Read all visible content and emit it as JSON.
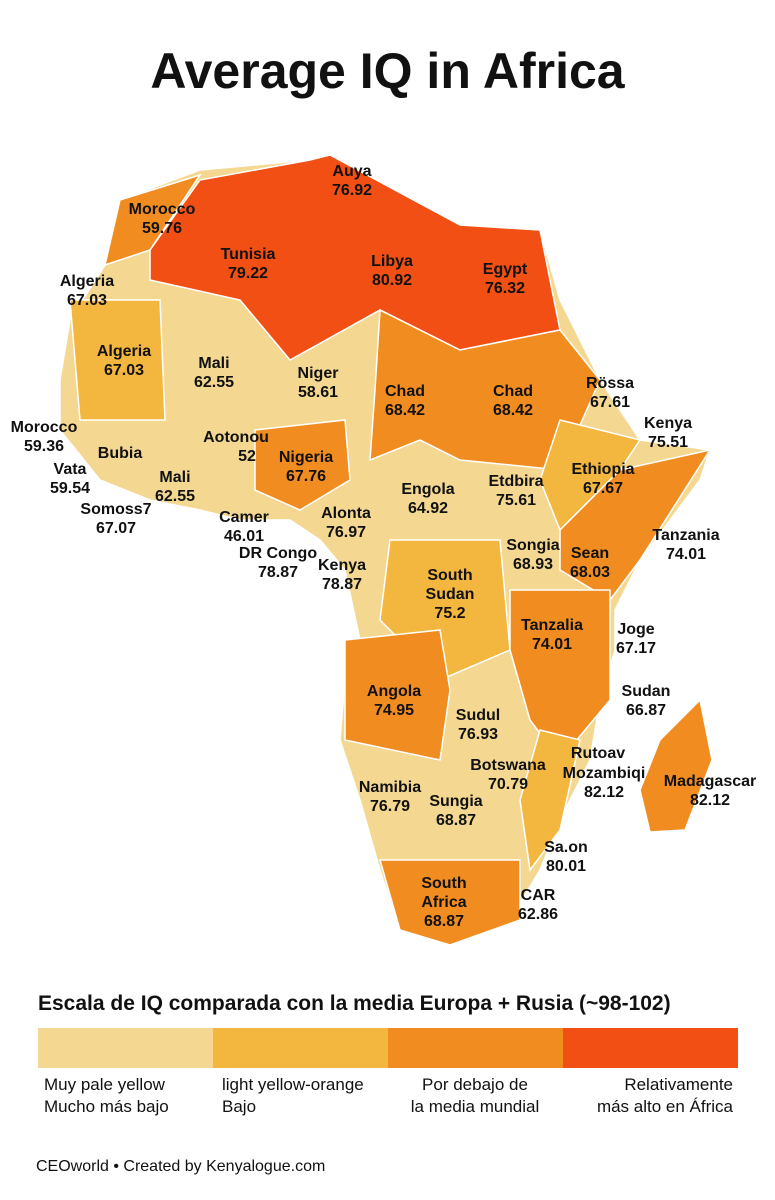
{
  "title": "Average IQ in Africa",
  "labels": [
    {
      "name": "Auya",
      "value": 76.92
    },
    {
      "name": "Morocco",
      "value": 59.76
    },
    {
      "name": "Tunisia",
      "value": 79.22
    },
    {
      "name": "Libya",
      "value": 80.92
    },
    {
      "name": "Egypt",
      "value": 76.32
    },
    {
      "name": "Algeria",
      "value": 67.03
    },
    {
      "name": "Algeria",
      "value": 67.03
    },
    {
      "name": "Mali",
      "value": 62.55
    },
    {
      "name": "Niger",
      "value": 58.61
    },
    {
      "name": "Chad",
      "value": 68.42
    },
    {
      "name": "Chad",
      "value": 68.42
    },
    {
      "name": "Rössa",
      "value": 67.61
    },
    {
      "name": "Morocco",
      "value": 59.36
    },
    {
      "name": "Kenya",
      "value": 75.51
    },
    {
      "name": "Bubia"
    },
    {
      "name": "Aotonou",
      "value": 52
    },
    {
      "name": "Nigeria",
      "value": 67.76
    },
    {
      "name": "Vata",
      "value": 59.54
    },
    {
      "name": "Mali",
      "value": 62.55
    },
    {
      "name": "Ethiopia",
      "value": 67.67
    },
    {
      "name": "Etdbira",
      "value": 75.61
    },
    {
      "name": "Engola",
      "value": 64.92
    },
    {
      "name": "Somoss7",
      "value": 67.07
    },
    {
      "name": "Camer",
      "value": 46.01
    },
    {
      "name": "Alonta",
      "value": 76.97
    },
    {
      "name": "Tanzania",
      "value": 74.01
    },
    {
      "name": "Songia",
      "value": 68.93
    },
    {
      "name": "Sean",
      "value": 68.03
    },
    {
      "name": "DR Congo",
      "value": 78.87
    },
    {
      "name": "Kenya",
      "value": 78.87
    },
    {
      "name": "South Sudan",
      "value": 75.2
    },
    {
      "name": "Tanzalia",
      "value": 74.01
    },
    {
      "name": "Joge",
      "value": 67.17
    },
    {
      "name": "Angola",
      "value": 74.95
    },
    {
      "name": "Sudan",
      "value": 66.87
    },
    {
      "name": "Sudul",
      "value": 76.93
    },
    {
      "name": "Botswana",
      "value": 70.79
    },
    {
      "name": "Rutoav"
    },
    {
      "name": "Mozambiqi",
      "value": 82.12
    },
    {
      "name": "Madagascar",
      "value": 82.12
    },
    {
      "name": "Namibia",
      "value": 76.79
    },
    {
      "name": "Sungia",
      "value": 68.87
    },
    {
      "name": "Sa.on",
      "value": 80.01
    },
    {
      "name": "South Africa",
      "value": 68.87
    },
    {
      "name": "CAR",
      "value": 62.86
    }
  ],
  "legend": {
    "title": "Escala de IQ comparada con la media Europa + Rusia (~98-102)",
    "items": [
      {
        "color": "#f4d892",
        "label": [
          "Muy pale yellow",
          "Mucho más bajo"
        ]
      },
      {
        "color": "#f3b63f",
        "label": [
          "light yellow-orange",
          "Bajo"
        ]
      },
      {
        "color": "#f18c20",
        "label": [
          "Por debajo de",
          "la media mundial"
        ]
      },
      {
        "color": "#f14f14",
        "label": [
          "Relativamente",
          "más alto en África"
        ]
      }
    ]
  },
  "footer": "CEOworld • Created by Kenyalogue.com"
}
